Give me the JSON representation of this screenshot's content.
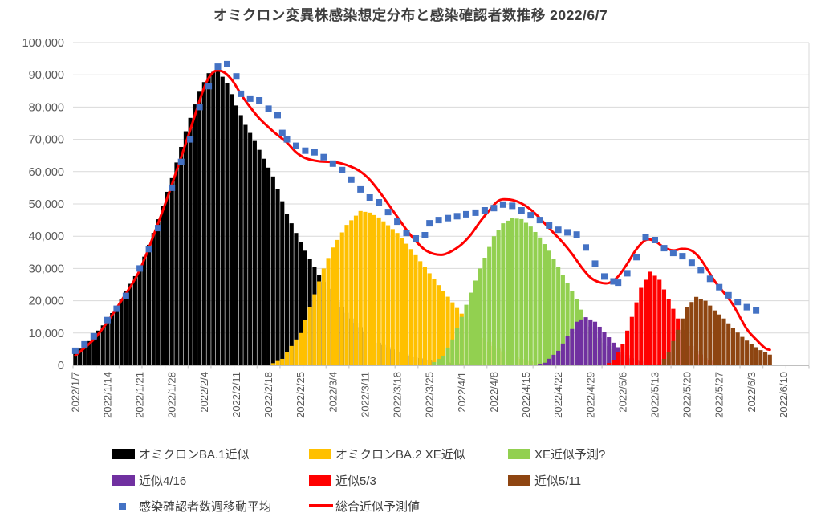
{
  "title": "オミクロン変異株感染想定分布と感染確認者数推移  2022/6/7",
  "colors": {
    "grid": "#d9d9d9",
    "axis": "#bfbfbf",
    "tick_text": "#595959",
    "title_text": "#3f3f3f"
  },
  "chart_data": {
    "type": "bar",
    "title": "オミクロン変異株感染想定分布と感染確認者数推移  2022/6/7",
    "xlabel": "",
    "ylabel": "",
    "ylim": [
      0,
      100000
    ],
    "y_tick_step": 10000,
    "grid": true,
    "legend_position": "bottom",
    "x_unit": "day",
    "x_day0": "2022/1/7",
    "x_total_days": 160,
    "x_tick_labels": [
      "2022/1/7",
      "2022/1/14",
      "2022/1/21",
      "2022/1/28",
      "2022/2/4",
      "2022/2/11",
      "2022/2/18",
      "2022/2/25",
      "2022/3/4",
      "2022/3/11",
      "2022/3/18",
      "2022/3/25",
      "2022/4/1",
      "2022/4/8",
      "2022/4/15",
      "2022/4/22",
      "2022/4/29",
      "2022/5/6",
      "2022/5/13",
      "2022/5/20",
      "2022/5/27",
      "2022/6/3",
      "2022/6/10"
    ],
    "x_tick_label_days": [
      0,
      7,
      14,
      21,
      28,
      35,
      42,
      49,
      56,
      63,
      70,
      77,
      84,
      91,
      98,
      105,
      112,
      119,
      126,
      133,
      140,
      147,
      154
    ],
    "minor_tick_interval_days": 5,
    "y_tick_labels": [
      "0",
      "10,000",
      "20,000",
      "30,000",
      "40,000",
      "50,000",
      "60,000",
      "70,000",
      "80,000",
      "90,000",
      "100,000"
    ],
    "series": [
      {
        "name": "オミクロンBA.1近似",
        "type": "bar",
        "color": "#000000",
        "points": [
          [
            0,
            4000
          ],
          [
            3,
            7500
          ],
          [
            7,
            14000
          ],
          [
            10,
            20500
          ],
          [
            14,
            30000
          ],
          [
            17,
            41000
          ],
          [
            21,
            58000
          ],
          [
            24,
            72500
          ],
          [
            27,
            85000
          ],
          [
            29,
            90500
          ],
          [
            31,
            91300
          ],
          [
            33,
            87500
          ],
          [
            35,
            80500
          ],
          [
            37,
            74500
          ],
          [
            39,
            69500
          ],
          [
            41,
            64000
          ],
          [
            43,
            58500
          ],
          [
            46,
            47000
          ],
          [
            48,
            41000
          ],
          [
            50,
            35500
          ],
          [
            53,
            28000
          ],
          [
            56,
            21500
          ],
          [
            60,
            14500
          ],
          [
            63,
            10500
          ],
          [
            66,
            7000
          ],
          [
            70,
            4200
          ],
          [
            74,
            2500
          ],
          [
            78,
            1400
          ],
          [
            82,
            700
          ],
          [
            86,
            300
          ],
          [
            90,
            0
          ]
        ]
      },
      {
        "name": "オミクロンBA.2 XE近似",
        "type": "bar",
        "color": "#ffc000",
        "points": [
          [
            42,
            0
          ],
          [
            45,
            2000
          ],
          [
            49,
            10000
          ],
          [
            52,
            22000
          ],
          [
            54,
            30000
          ],
          [
            56,
            36500
          ],
          [
            59,
            43500
          ],
          [
            62,
            47800
          ],
          [
            64,
            47300
          ],
          [
            66,
            45800
          ],
          [
            70,
            41000
          ],
          [
            73,
            36000
          ],
          [
            77,
            28500
          ],
          [
            80,
            23000
          ],
          [
            84,
            16000
          ],
          [
            87,
            11000
          ],
          [
            91,
            6000
          ],
          [
            94,
            3500
          ],
          [
            98,
            1500
          ],
          [
            102,
            500
          ],
          [
            106,
            0
          ]
        ]
      },
      {
        "name": "XE近似予測?",
        "type": "bar",
        "color": "#92d050",
        "points": [
          [
            77,
            0
          ],
          [
            80,
            3000
          ],
          [
            82,
            8000
          ],
          [
            84,
            15000
          ],
          [
            86,
            22500
          ],
          [
            88,
            30000
          ],
          [
            91,
            40000
          ],
          [
            93,
            44000
          ],
          [
            95,
            45600
          ],
          [
            97,
            45300
          ],
          [
            99,
            43000
          ],
          [
            101,
            39600
          ],
          [
            103,
            35500
          ],
          [
            105,
            30500
          ],
          [
            107,
            25500
          ],
          [
            109,
            20500
          ],
          [
            111,
            14000
          ],
          [
            113,
            10000
          ],
          [
            115,
            7000
          ],
          [
            118,
            4000
          ],
          [
            121,
            2000
          ],
          [
            125,
            800
          ],
          [
            129,
            0
          ]
        ]
      },
      {
        "name": "近似4/16",
        "type": "bar",
        "color": "#7030a0",
        "points": [
          [
            100,
            0
          ],
          [
            102,
            800
          ],
          [
            105,
            4500
          ],
          [
            107,
            9000
          ],
          [
            109,
            13500
          ],
          [
            111,
            14900
          ],
          [
            113,
            13500
          ],
          [
            115,
            10400
          ],
          [
            117,
            7000
          ],
          [
            119,
            4200
          ],
          [
            121,
            2200
          ],
          [
            124,
            700
          ],
          [
            127,
            0
          ]
        ]
      },
      {
        "name": "近似5/3",
        "type": "bar",
        "color": "#ff0000",
        "points": [
          [
            115,
            0
          ],
          [
            117,
            1500
          ],
          [
            119,
            6500
          ],
          [
            121,
            15000
          ],
          [
            123,
            24000
          ],
          [
            125,
            29000
          ],
          [
            127,
            26500
          ],
          [
            129,
            20500
          ],
          [
            131,
            14500
          ],
          [
            133,
            7500
          ],
          [
            135,
            4500
          ],
          [
            137,
            2200
          ],
          [
            140,
            700
          ],
          [
            143,
            0
          ]
        ]
      },
      {
        "name": "近似5/11",
        "type": "bar",
        "color": "#8e4511",
        "points": [
          [
            127,
            0
          ],
          [
            129,
            4000
          ],
          [
            131,
            11000
          ],
          [
            133,
            18000
          ],
          [
            135,
            21200
          ],
          [
            137,
            20000
          ],
          [
            139,
            17000
          ],
          [
            141,
            14500
          ],
          [
            143,
            11500
          ],
          [
            145,
            8800
          ],
          [
            147,
            6500
          ],
          [
            149,
            4700
          ],
          [
            151,
            3300
          ]
        ]
      },
      {
        "name": "感染確認者数週移動平均",
        "type": "scatter",
        "color": "#4472c4",
        "marker": "square",
        "points": [
          [
            0,
            4500
          ],
          [
            2,
            6500
          ],
          [
            4,
            9000
          ],
          [
            7,
            14000
          ],
          [
            9,
            17500
          ],
          [
            11,
            21500
          ],
          [
            14,
            30000
          ],
          [
            16,
            36000
          ],
          [
            18,
            42500
          ],
          [
            21,
            55000
          ],
          [
            23,
            63000
          ],
          [
            25,
            70000
          ],
          [
            27,
            80000
          ],
          [
            29,
            86500
          ],
          [
            31,
            92500
          ],
          [
            33,
            93300
          ],
          [
            35,
            89500
          ],
          [
            36,
            84100
          ],
          [
            38,
            82600
          ],
          [
            40,
            82100
          ],
          [
            42,
            79500
          ],
          [
            44,
            77500
          ],
          [
            45,
            72000
          ],
          [
            46,
            70000
          ],
          [
            48,
            68000
          ],
          [
            50,
            66500
          ],
          [
            52,
            66000
          ],
          [
            54,
            64500
          ],
          [
            56,
            62500
          ],
          [
            58,
            60500
          ],
          [
            60,
            57500
          ],
          [
            62,
            54500
          ],
          [
            64,
            52000
          ],
          [
            66,
            50500
          ],
          [
            68,
            47500
          ],
          [
            70,
            44500
          ],
          [
            72,
            41000
          ],
          [
            74,
            39300
          ],
          [
            76,
            40300
          ],
          [
            77,
            44000
          ],
          [
            79,
            45000
          ],
          [
            81,
            45600
          ],
          [
            83,
            46200
          ],
          [
            85,
            46800
          ],
          [
            87,
            47300
          ],
          [
            89,
            48000
          ],
          [
            91,
            48700
          ],
          [
            93,
            49800
          ],
          [
            95,
            49400
          ],
          [
            97,
            48000
          ],
          [
            99,
            46500
          ],
          [
            101,
            45000
          ],
          [
            103,
            43300
          ],
          [
            105,
            42000
          ],
          [
            107,
            41200
          ],
          [
            109,
            40500
          ],
          [
            111,
            36500
          ],
          [
            113,
            31500
          ],
          [
            115,
            27500
          ],
          [
            117,
            26000
          ],
          [
            118,
            25600
          ],
          [
            120,
            28500
          ],
          [
            122,
            33500
          ],
          [
            124,
            39700
          ],
          [
            126,
            38800
          ],
          [
            128,
            36300
          ],
          [
            130,
            34800
          ],
          [
            132,
            33800
          ],
          [
            134,
            31800
          ],
          [
            136,
            29500
          ],
          [
            138,
            26800
          ],
          [
            140,
            24200
          ],
          [
            142,
            21700
          ],
          [
            144,
            19600
          ],
          [
            146,
            18000
          ],
          [
            148,
            17000
          ]
        ]
      },
      {
        "name": "総合近似予測値",
        "type": "line",
        "color": "#ff0000",
        "points": [
          [
            0,
            3000
          ],
          [
            4,
            8000
          ],
          [
            7,
            13500
          ],
          [
            10,
            20000
          ],
          [
            14,
            29500
          ],
          [
            18,
            44000
          ],
          [
            21,
            56000
          ],
          [
            25,
            73000
          ],
          [
            28,
            86000
          ],
          [
            30,
            90800
          ],
          [
            32,
            91000
          ],
          [
            34,
            88500
          ],
          [
            36,
            84000
          ],
          [
            38,
            80000
          ],
          [
            40,
            76500
          ],
          [
            43,
            72500
          ],
          [
            46,
            69000
          ],
          [
            48,
            66000
          ],
          [
            50,
            64200
          ],
          [
            53,
            63200
          ],
          [
            56,
            63000
          ],
          [
            58,
            62500
          ],
          [
            60,
            61500
          ],
          [
            62,
            60000
          ],
          [
            64,
            57500
          ],
          [
            66,
            54000
          ],
          [
            68,
            50000
          ],
          [
            70,
            46000
          ],
          [
            72,
            42000
          ],
          [
            74,
            38500
          ],
          [
            76,
            35800
          ],
          [
            78,
            34500
          ],
          [
            80,
            34300
          ],
          [
            82,
            35500
          ],
          [
            84,
            37500
          ],
          [
            86,
            40500
          ],
          [
            88,
            44500
          ],
          [
            90,
            48000
          ],
          [
            92,
            51000
          ],
          [
            94,
            51400
          ],
          [
            96,
            50800
          ],
          [
            98,
            49300
          ],
          [
            100,
            47000
          ],
          [
            102,
            44000
          ],
          [
            104,
            41000
          ],
          [
            106,
            38000
          ],
          [
            108,
            34500
          ],
          [
            110,
            30500
          ],
          [
            112,
            27200
          ],
          [
            114,
            25700
          ],
          [
            116,
            25500
          ],
          [
            118,
            27500
          ],
          [
            120,
            31500
          ],
          [
            122,
            36000
          ],
          [
            124,
            38800
          ],
          [
            126,
            38500
          ],
          [
            128,
            36500
          ],
          [
            130,
            35600
          ],
          [
            132,
            36100
          ],
          [
            134,
            35500
          ],
          [
            136,
            32800
          ],
          [
            139,
            26100
          ],
          [
            141,
            22500
          ],
          [
            143,
            18700
          ],
          [
            146,
            11200
          ],
          [
            148,
            8000
          ],
          [
            150,
            5300
          ],
          [
            151,
            4800
          ]
        ]
      }
    ],
    "legend": {
      "rows": [
        {
          "items": [
            {
              "series": 0,
              "label": "オミクロンBA.1近似"
            },
            {
              "series": 1,
              "label": "オミクロンBA.2 XE近似"
            },
            {
              "series": 2,
              "label": "XE近似予測?"
            }
          ]
        },
        {
          "items": [
            {
              "series": 3,
              "label": "近似4/16"
            },
            {
              "series": 4,
              "label": "近似5/3"
            },
            {
              "series": 5,
              "label": "近似5/11"
            }
          ]
        },
        {
          "items": [
            {
              "series": 6,
              "label": "感染確認者数週移動平均"
            },
            {
              "series": 7,
              "label": "総合近似予測値"
            }
          ]
        }
      ]
    }
  }
}
